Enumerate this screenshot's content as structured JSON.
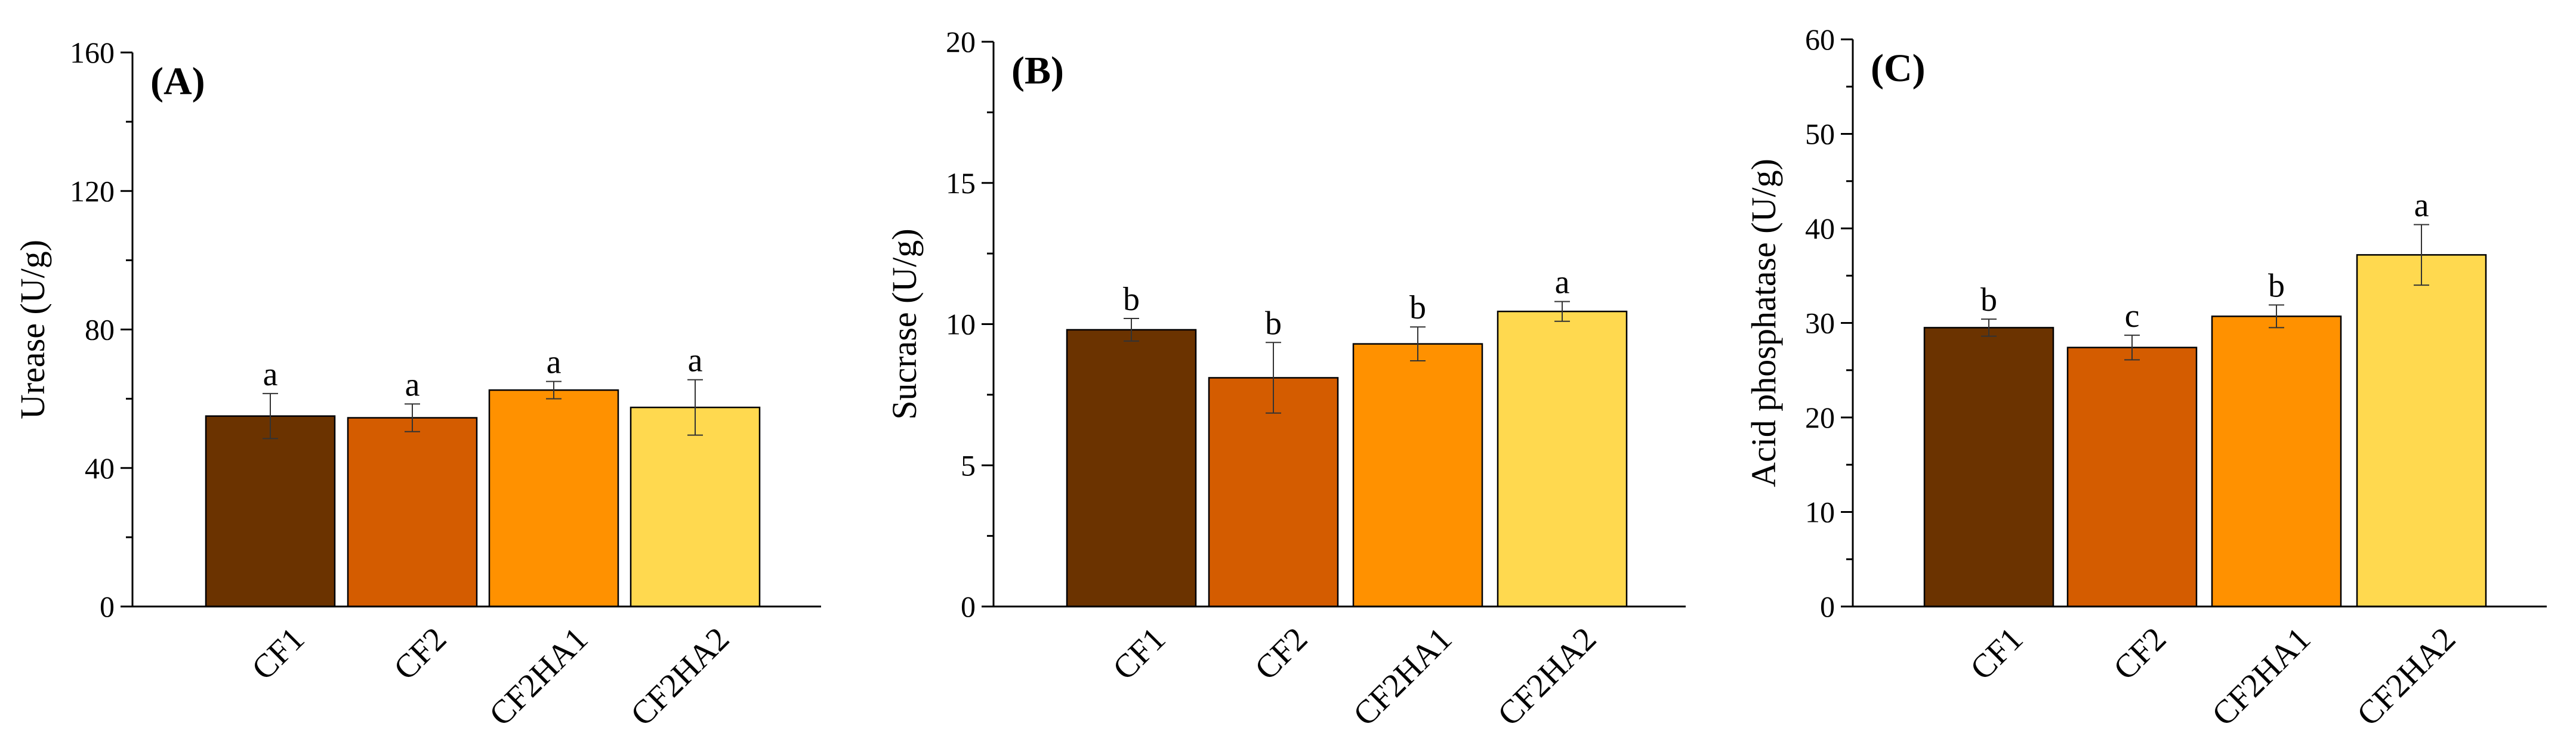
{
  "chart_data": [
    {
      "type": "bar",
      "panel_label": "(A)",
      "ylabel": "Urease (U/g)",
      "xlabel": "",
      "ylim": [
        0,
        160
      ],
      "yticks": [
        0,
        40,
        80,
        120,
        160
      ],
      "categories": [
        "CF1",
        "CF2",
        "CF2HA1",
        "CF2HA2"
      ],
      "values": [
        55,
        54.5,
        62.5,
        57.5
      ],
      "errors": [
        6.5,
        4,
        2.5,
        8
      ],
      "letters": [
        "a",
        "a",
        "a",
        "a"
      ]
    },
    {
      "type": "bar",
      "panel_label": "(B)",
      "ylabel": "Sucrase (U/g)",
      "xlabel": "",
      "ylim": [
        0,
        20
      ],
      "yticks": [
        0,
        5,
        10,
        15,
        20
      ],
      "categories": [
        "CF1",
        "CF2",
        "CF2HA1",
        "CF2HA2"
      ],
      "values": [
        9.8,
        8.1,
        9.3,
        10.45
      ],
      "errors": [
        0.4,
        1.25,
        0.6,
        0.35
      ],
      "letters": [
        "b",
        "b",
        "b",
        "a"
      ]
    },
    {
      "type": "bar",
      "panel_label": "(C)",
      "ylabel": "Acid phosphatase (U/g)",
      "xlabel": "",
      "ylim": [
        0,
        60
      ],
      "yticks": [
        0,
        10,
        20,
        30,
        40,
        50,
        60
      ],
      "categories": [
        "CF1",
        "CF2",
        "CF2HA1",
        "CF2HA2"
      ],
      "values": [
        29.5,
        27.4,
        30.7,
        37.2
      ],
      "errors": [
        0.9,
        1.3,
        1.2,
        3.2
      ],
      "letters": [
        "b",
        "c",
        "b",
        "a"
      ]
    }
  ],
  "colors": [
    "#6b3300",
    "#d45c00",
    "#ff9100",
    "#ffd94f"
  ]
}
